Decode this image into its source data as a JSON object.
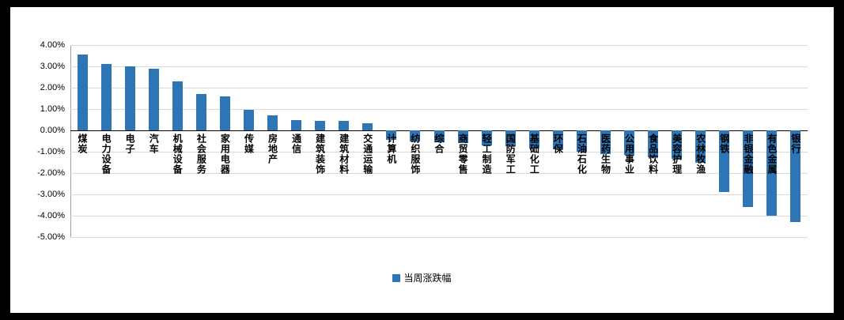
{
  "chart_data": {
    "type": "bar",
    "title": "",
    "legend": "当周涨跌幅",
    "bar_color": "#2E75B6",
    "grid": true,
    "legend_position": "bottom-center",
    "y_axis": {
      "min": -5,
      "max": 4,
      "step": 1,
      "unit": "%"
    },
    "y_ticks": [
      {
        "value": 4,
        "label": "4.00%"
      },
      {
        "value": 3,
        "label": "3.00%"
      },
      {
        "value": 2,
        "label": "2.00%"
      },
      {
        "value": 1,
        "label": "1.00%"
      },
      {
        "value": 0,
        "label": "0.00%"
      },
      {
        "value": -1,
        "label": "-1.00%"
      },
      {
        "value": -2,
        "label": "-2.00%"
      },
      {
        "value": -3,
        "label": "-3.00%"
      },
      {
        "value": -4,
        "label": "-4.00%"
      },
      {
        "value": -5,
        "label": "-5.00%"
      }
    ],
    "categories": [
      "煤炭",
      "电力设备",
      "电子",
      "汽车",
      "机械设备",
      "社会服务",
      "家用电器",
      "传媒",
      "房地产",
      "通信",
      "建筑装饰",
      "建筑材料",
      "交通运输",
      "计算机",
      "纺织服饰",
      "综合",
      "商贸零售",
      "轻工制造",
      "国防军工",
      "基础化工",
      "环保",
      "石油石化",
      "医药生物",
      "公用事业",
      "食品饮料",
      "美容护理",
      "农林牧渔",
      "钢铁",
      "非银金融",
      "有色金属",
      "银行"
    ],
    "values": [
      3.55,
      3.1,
      3.0,
      2.9,
      2.3,
      1.7,
      1.6,
      0.95,
      0.7,
      0.5,
      0.45,
      0.45,
      0.35,
      -0.45,
      -0.5,
      -0.55,
      -0.6,
      -0.7,
      -0.75,
      -0.85,
      -0.9,
      -1.0,
      -1.1,
      -1.15,
      -1.25,
      -1.35,
      -1.5,
      -2.9,
      -3.6,
      -4.0,
      -4.3
    ]
  }
}
